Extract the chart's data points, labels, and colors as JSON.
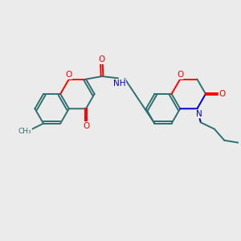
{
  "bg_color": "#ebebeb",
  "bond_color": "#2d7070",
  "bond_width": 1.4,
  "atom_colors": {
    "O": "#ff0000",
    "N": "#0000cc",
    "C": "#2d7070",
    "H": "#808080"
  },
  "font_size": 7.5,
  "figsize": [
    3.0,
    3.0
  ],
  "dpi": 100
}
